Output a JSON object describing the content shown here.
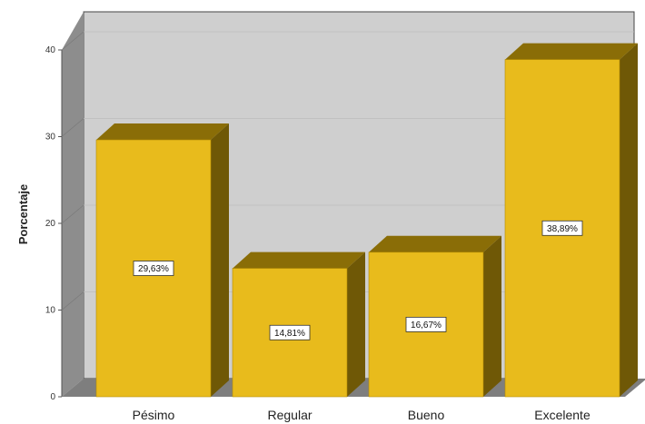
{
  "chart_data": {
    "type": "bar",
    "ylabel": "Porcentaje",
    "xlabel": "",
    "title": "",
    "ylim": [
      0,
      40
    ],
    "yticks": [
      0,
      10,
      20,
      30,
      40
    ],
    "categories": [
      "Pésimo",
      "Regular",
      "Bueno",
      "Excelente"
    ],
    "values": [
      29.63,
      14.81,
      16.67,
      38.89
    ],
    "data_labels": [
      "29,63%",
      "14,81%",
      "16,67%",
      "38,89%"
    ],
    "style": "3d",
    "grid": true,
    "colors": {
      "bar_front": "#e8bb1c",
      "bar_top": "#8a6d07",
      "bar_side": "#6f5806",
      "back_wall": "#cfcfcf",
      "side_wall": "#8d8d8d",
      "floor": "#7e7e7e"
    }
  }
}
